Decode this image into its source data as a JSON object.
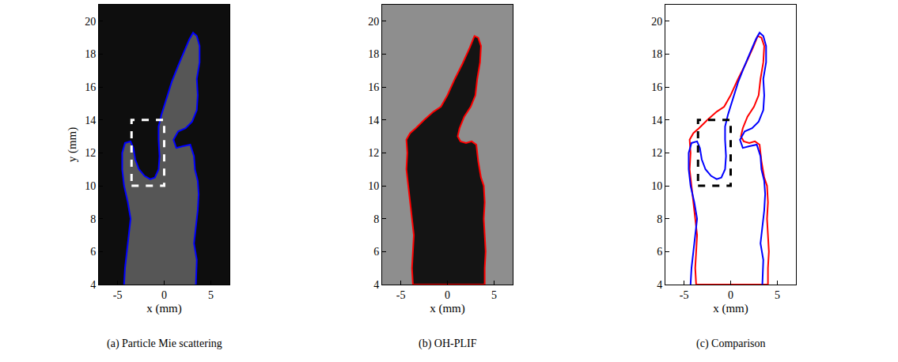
{
  "chart_data": [
    {
      "type": "line",
      "caption": "(a) Particle Mie scattering",
      "xlabel": "x (mm)",
      "ylabel": "y (mm)",
      "xlim": [
        -7,
        7
      ],
      "ylim": [
        4,
        21
      ],
      "xticks": [
        -5,
        0,
        5
      ],
      "yticks": [
        4,
        6,
        8,
        10,
        12,
        14,
        16,
        18,
        20
      ],
      "series": [
        {
          "color": "#0000ff",
          "x": [
            -4.3,
            -4.2,
            -4.0,
            -3.8,
            -3.6,
            -3.9,
            -4.3,
            -4.5,
            -4.5,
            -4.2,
            -3.6,
            -3.3,
            -3.1,
            -2.7,
            -2.1,
            -1.5,
            -1.0,
            -0.6,
            -0.5,
            -0.6,
            -0.6,
            -0.3,
            0.2,
            0.8,
            1.5,
            2.2,
            2.7,
            3.1,
            3.5,
            3.8,
            3.8,
            3.5,
            3.6,
            3.5,
            3.0,
            2.3,
            1.5,
            1.0,
            1.3,
            2.0,
            2.8,
            3.2,
            3.3,
            3.6,
            3.7,
            3.6,
            3.4,
            3.2,
            3.5,
            3.4
          ],
          "y": [
            4,
            5,
            6,
            7,
            8,
            9,
            10,
            11,
            12,
            12.6,
            12.7,
            12.3,
            11.6,
            11.0,
            10.6,
            10.4,
            10.5,
            11.0,
            11.8,
            12.8,
            13.6,
            14.3,
            15.2,
            16.3,
            17.3,
            18.2,
            18.9,
            19.3,
            19.1,
            18.5,
            17.5,
            16.5,
            15.5,
            14.6,
            13.9,
            13.5,
            13.3,
            12.8,
            12.3,
            12.4,
            12.5,
            11.8,
            11.0,
            10.3,
            9.5,
            8.5,
            7.5,
            6.5,
            5.5,
            4
          ]
        }
      ],
      "region": {
        "x": [
          -3.5,
          0
        ],
        "y": [
          10,
          14
        ],
        "color": "#ffffff",
        "line_style": "dash"
      }
    },
    {
      "type": "line",
      "caption": "(b) OH-PLIF",
      "xlabel": "x (mm)",
      "xlim": [
        -7,
        7
      ],
      "ylim": [
        4,
        21
      ],
      "xticks": [
        -5,
        0,
        5
      ],
      "yticks": [
        4,
        6,
        8,
        10,
        12,
        14,
        16,
        18,
        20
      ],
      "series": [
        {
          "color": "#ff0000",
          "x": [
            -3.7,
            -3.8,
            -3.7,
            -3.6,
            -3.8,
            -4.0,
            -4.2,
            -4.4,
            -4.3,
            -4.4,
            -4.0,
            -3.4,
            -2.5,
            -1.5,
            -0.7,
            0.0,
            0.8,
            1.6,
            2.4,
            2.9,
            3.3,
            3.6,
            3.5,
            3.2,
            3.0,
            2.5,
            1.8,
            1.3,
            1.1,
            1.4,
            2.0,
            2.6,
            3.1,
            3.3,
            3.6,
            3.9,
            4.0,
            3.9,
            4.0,
            4.1,
            4.0,
            4.0,
            -3.7
          ],
          "y": [
            4,
            5,
            6,
            7,
            8,
            9,
            10,
            11,
            12,
            12.8,
            13.2,
            13.5,
            14.0,
            14.5,
            14.8,
            15.5,
            16.5,
            17.4,
            18.4,
            19.1,
            19.0,
            18.5,
            17.5,
            16.5,
            15.5,
            14.8,
            14.2,
            13.5,
            13.0,
            12.7,
            12.6,
            12.7,
            12.5,
            11.5,
            10.5,
            10.0,
            9.0,
            8.0,
            7.0,
            6.0,
            5.0,
            4,
            4
          ]
        }
      ]
    },
    {
      "type": "line",
      "caption": "(c) Comparison",
      "xlabel": "x (mm)",
      "xlim": [
        -7,
        7
      ],
      "ylim": [
        4,
        21
      ],
      "xticks": [
        -5,
        0,
        5
      ],
      "yticks": [
        4,
        6,
        8,
        10,
        12,
        14,
        16,
        18,
        20
      ],
      "series": [
        {
          "color": "#ff0000",
          "x": [
            -3.7,
            -3.8,
            -3.7,
            -3.6,
            -3.8,
            -4.0,
            -4.2,
            -4.4,
            -4.3,
            -4.4,
            -4.0,
            -3.4,
            -2.5,
            -1.5,
            -0.7,
            0.0,
            0.8,
            1.6,
            2.4,
            2.9,
            3.3,
            3.6,
            3.5,
            3.2,
            3.0,
            2.5,
            1.8,
            1.3,
            1.1,
            1.4,
            2.0,
            2.6,
            3.1,
            3.3,
            3.6,
            3.9,
            4.0,
            3.9,
            4.0,
            4.1,
            4.0,
            4.0,
            -3.7
          ],
          "y": [
            4,
            5,
            6,
            7,
            8,
            9,
            10,
            11,
            12,
            12.8,
            13.2,
            13.5,
            14.0,
            14.5,
            14.8,
            15.5,
            16.5,
            17.4,
            18.4,
            19.1,
            19.0,
            18.5,
            17.5,
            16.5,
            15.5,
            14.8,
            14.2,
            13.5,
            13.0,
            12.7,
            12.6,
            12.7,
            12.5,
            11.5,
            10.5,
            10.0,
            9.0,
            8.0,
            7.0,
            6.0,
            5.0,
            4,
            4
          ]
        },
        {
          "color": "#0000ff",
          "x": [
            -4.3,
            -4.2,
            -4.0,
            -3.8,
            -3.6,
            -3.9,
            -4.3,
            -4.5,
            -4.5,
            -4.2,
            -3.6,
            -3.3,
            -3.1,
            -2.7,
            -2.1,
            -1.5,
            -1.0,
            -0.6,
            -0.5,
            -0.6,
            -0.6,
            -0.3,
            0.2,
            0.8,
            1.5,
            2.2,
            2.7,
            3.1,
            3.5,
            3.8,
            3.8,
            3.5,
            3.6,
            3.5,
            3.0,
            2.3,
            1.5,
            1.0,
            1.3,
            2.0,
            2.8,
            3.2,
            3.3,
            3.6,
            3.7,
            3.6,
            3.4,
            3.2,
            3.5,
            3.4
          ],
          "y": [
            4,
            5,
            6,
            7,
            8,
            9,
            10,
            11,
            12,
            12.6,
            12.7,
            12.3,
            11.6,
            11.0,
            10.6,
            10.4,
            10.5,
            11.0,
            11.8,
            12.8,
            13.6,
            14.3,
            15.2,
            16.3,
            17.3,
            18.2,
            18.9,
            19.3,
            19.1,
            18.5,
            17.5,
            16.5,
            15.5,
            14.6,
            13.9,
            13.5,
            13.3,
            12.8,
            12.3,
            12.4,
            12.5,
            11.8,
            11.0,
            10.3,
            9.5,
            8.5,
            7.5,
            6.5,
            5.5,
            4
          ]
        }
      ],
      "region": {
        "x": [
          -3.5,
          0
        ],
        "y": [
          10,
          14
        ],
        "color": "#000000",
        "line_style": "dash"
      }
    }
  ]
}
